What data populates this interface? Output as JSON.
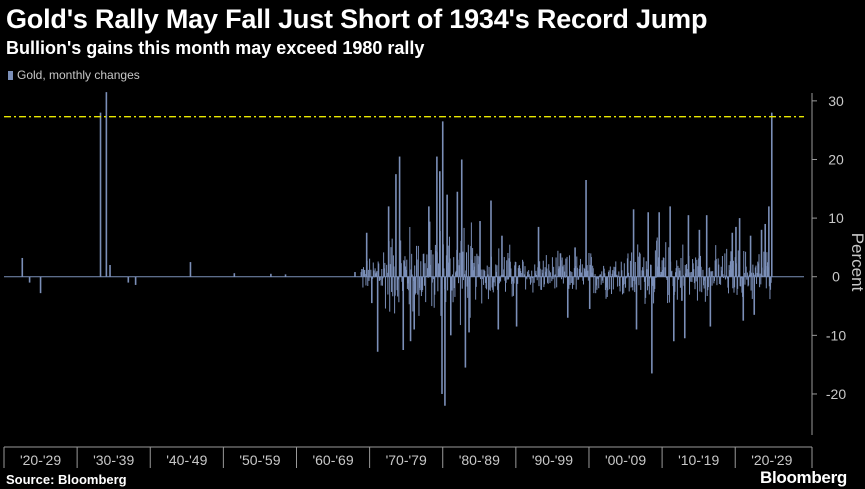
{
  "chart_data": {
    "type": "bar",
    "title": "Gold's Rally May Fall Just Short of 1934's Record Jump",
    "subtitle": "Bullion's gains this month may exceed 1980 rally",
    "legend": {
      "label": "Gold, monthly changes",
      "placement": "top-left"
    },
    "ylabel": "Percent",
    "ylim": [
      -27,
      31
    ],
    "yticks": [
      -20,
      -10,
      0,
      10,
      20,
      30
    ],
    "ytick_labels": [
      "-20",
      "-10",
      "0",
      "10",
      "20",
      "30"
    ],
    "xlim": [
      1920,
      2030.5
    ],
    "decade_labels": [
      "'20-'29",
      "'30-'39",
      "'40-'49",
      "'50-'59",
      "'60-'69",
      "'70-'79",
      "'80-'89",
      "'90-'99",
      "'00-'09",
      "'10-'19",
      "'20-'29"
    ],
    "grid": false,
    "reference_line": {
      "value": 27.3,
      "style": "dash-dot"
    },
    "series": [
      {
        "values_kind": "monthly percent change (key months read off chart)",
        "points": [
          {
            "x": 1922.5,
            "y": 3.2
          },
          {
            "x": 1923.5,
            "y": -1.0
          },
          {
            "x": 1925.0,
            "y": -2.8
          },
          {
            "x": 1933.2,
            "y": 28.0
          },
          {
            "x": 1934.0,
            "y": 31.5
          },
          {
            "x": 1934.5,
            "y": 2.0
          },
          {
            "x": 1937.0,
            "y": -1.0
          },
          {
            "x": 1938.0,
            "y": -1.4
          },
          {
            "x": 1945.5,
            "y": 2.5
          },
          {
            "x": 1951.5,
            "y": 0.6
          },
          {
            "x": 1956.5,
            "y": 0.5
          },
          {
            "x": 1958.5,
            "y": 0.4
          },
          {
            "x": 1968.0,
            "y": 0.8
          },
          {
            "x": 1969.6,
            "y": 7.5
          },
          {
            "x": 1970.3,
            "y": -4.5
          },
          {
            "x": 1971.1,
            "y": -12.8
          },
          {
            "x": 1972.6,
            "y": 12.0
          },
          {
            "x": 1973.6,
            "y": 17.5
          },
          {
            "x": 1974.1,
            "y": 20.5
          },
          {
            "x": 1974.6,
            "y": -12.5
          },
          {
            "x": 1975.6,
            "y": -11.0
          },
          {
            "x": 1976.1,
            "y": -9.0
          },
          {
            "x": 1978.1,
            "y": 12.0
          },
          {
            "x": 1979.2,
            "y": 20.5
          },
          {
            "x": 1979.6,
            "y": 18.0
          },
          {
            "x": 1979.9,
            "y": -20.0
          },
          {
            "x": 1980.0,
            "y": 26.5
          },
          {
            "x": 1980.3,
            "y": -22.0
          },
          {
            "x": 1980.6,
            "y": 14.0
          },
          {
            "x": 1981.1,
            "y": -10.0
          },
          {
            "x": 1982.0,
            "y": 14.5
          },
          {
            "x": 1982.6,
            "y": 20.0
          },
          {
            "x": 1983.1,
            "y": -15.5
          },
          {
            "x": 1983.6,
            "y": -9.5
          },
          {
            "x": 1985.1,
            "y": 9.5
          },
          {
            "x": 1986.6,
            "y": 13.0
          },
          {
            "x": 1987.6,
            "y": -9.0
          },
          {
            "x": 1988.1,
            "y": 7.0
          },
          {
            "x": 1990.1,
            "y": -8.5
          },
          {
            "x": 1993.1,
            "y": 8.5
          },
          {
            "x": 1996.1,
            "y": 4.0
          },
          {
            "x": 1997.1,
            "y": -7.0
          },
          {
            "x": 1998.1,
            "y": 5.0
          },
          {
            "x": 1999.6,
            "y": 16.5
          },
          {
            "x": 2000.1,
            "y": -5.5
          },
          {
            "x": 2006.1,
            "y": 11.5
          },
          {
            "x": 2006.5,
            "y": -9.0
          },
          {
            "x": 2008.1,
            "y": 11.0
          },
          {
            "x": 2008.6,
            "y": -16.5
          },
          {
            "x": 2009.6,
            "y": 11.0
          },
          {
            "x": 2011.1,
            "y": 12.0
          },
          {
            "x": 2011.6,
            "y": -11.0
          },
          {
            "x": 2013.1,
            "y": -10.5
          },
          {
            "x": 2013.6,
            "y": 10.5
          },
          {
            "x": 2015.1,
            "y": 8.0
          },
          {
            "x": 2016.1,
            "y": 10.5
          },
          {
            "x": 2016.6,
            "y": -8.5
          },
          {
            "x": 2019.6,
            "y": 7.5
          },
          {
            "x": 2020.1,
            "y": 8.5
          },
          {
            "x": 2020.6,
            "y": 10.0
          },
          {
            "x": 2021.1,
            "y": -7.5
          },
          {
            "x": 2022.1,
            "y": 7.0
          },
          {
            "x": 2022.6,
            "y": -6.5
          },
          {
            "x": 2023.6,
            "y": 8.0
          },
          {
            "x": 2024.1,
            "y": 9.0
          },
          {
            "x": 2024.6,
            "y": 12.0
          },
          {
            "x": 2025.0,
            "y": 28.0
          }
        ]
      }
    ],
    "colors": {
      "bars": "#7b8fb8",
      "reference": "#e8e800",
      "background": "#000000",
      "axis_text": "#c8c8c8"
    }
  },
  "footer": {
    "source": "Source: Bloomberg",
    "brand": "Bloomberg"
  }
}
